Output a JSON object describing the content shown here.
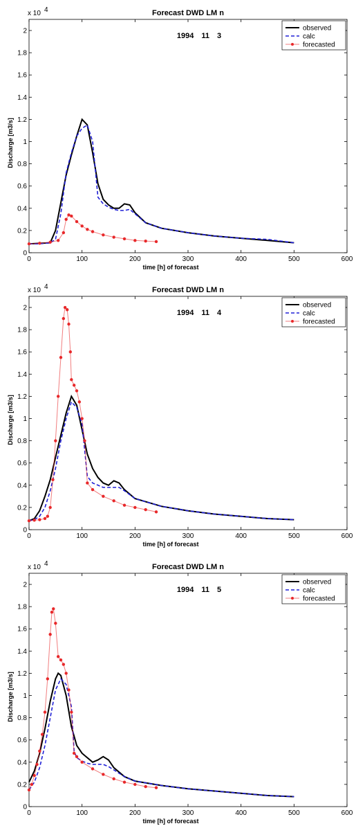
{
  "colors": {
    "observed": "#000000",
    "calc": "#1f1fd6",
    "forecasted": "#e8282a"
  },
  "chart_data": [
    {
      "type": "line",
      "title": "Forecast DWD LM n",
      "date_label": "1994 11 3",
      "xlabel": "time [h] of forecast",
      "ylabel": "Discharge [m3/s]",
      "y_multiplier": "x 10",
      "y_exponent": "4",
      "xlim": [
        0,
        600
      ],
      "ylim": [
        0,
        2.1
      ],
      "xticks": [
        0,
        100,
        200,
        300,
        400,
        500,
        600
      ],
      "xtick_labels": [
        "0",
        "100",
        "200",
        "300",
        "400",
        "500",
        "600"
      ],
      "yticks": [
        0,
        0.2,
        0.4,
        0.6,
        0.8,
        1,
        1.2,
        1.4,
        1.6,
        1.8,
        2
      ],
      "ytick_labels": [
        "0",
        "0.2",
        "0.4",
        "0.6",
        "0.8",
        "1",
        "1.2",
        "1.4",
        "1.6",
        "1.8",
        "2"
      ],
      "legend": {
        "placement": "top-right",
        "entries": [
          "observed",
          "calc",
          "forecasted"
        ]
      },
      "series": [
        {
          "name": "observed",
          "style": "solid",
          "x": [
            0,
            20,
            40,
            50,
            60,
            70,
            80,
            90,
            100,
            110,
            120,
            130,
            140,
            150,
            160,
            170,
            180,
            190,
            200,
            220,
            250,
            300,
            350,
            400,
            450,
            500
          ],
          "y": [
            0.08,
            0.085,
            0.09,
            0.2,
            0.45,
            0.7,
            0.88,
            1.05,
            1.2,
            1.15,
            0.9,
            0.62,
            0.48,
            0.43,
            0.4,
            0.4,
            0.44,
            0.43,
            0.36,
            0.27,
            0.22,
            0.18,
            0.15,
            0.13,
            0.11,
            0.09
          ]
        },
        {
          "name": "calc",
          "style": "dashed",
          "x": [
            0,
            20,
            40,
            50,
            60,
            70,
            80,
            90,
            100,
            110,
            120,
            130,
            140,
            150,
            160,
            170,
            180,
            190,
            200,
            220,
            250,
            300,
            350,
            400,
            450,
            500
          ],
          "y": [
            0.08,
            0.08,
            0.09,
            0.12,
            0.35,
            0.72,
            0.9,
            1.05,
            1.12,
            1.15,
            1.0,
            0.5,
            0.44,
            0.41,
            0.39,
            0.38,
            0.38,
            0.39,
            0.35,
            0.27,
            0.22,
            0.18,
            0.15,
            0.13,
            0.12,
            0.09
          ]
        },
        {
          "name": "forecasted",
          "style": "marker",
          "x": [
            0,
            20,
            40,
            55,
            65,
            70,
            75,
            80,
            90,
            100,
            110,
            120,
            140,
            160,
            180,
            200,
            220,
            240
          ],
          "y": [
            0.08,
            0.085,
            0.095,
            0.11,
            0.18,
            0.3,
            0.34,
            0.33,
            0.28,
            0.24,
            0.21,
            0.19,
            0.16,
            0.14,
            0.125,
            0.11,
            0.105,
            0.1
          ]
        }
      ]
    },
    {
      "type": "line",
      "title": "Forecast DWD LM n",
      "date_label": "1994 11 4",
      "xlabel": "time [h] of forecast",
      "ylabel": "Discharge [m3/s]",
      "y_multiplier": "x 10",
      "y_exponent": "4",
      "xlim": [
        0,
        600
      ],
      "ylim": [
        0,
        2.1
      ],
      "xticks": [
        0,
        100,
        200,
        300,
        400,
        500,
        600
      ],
      "xtick_labels": [
        "0",
        "100",
        "200",
        "300",
        "400",
        "500",
        "600"
      ],
      "yticks": [
        0,
        0.2,
        0.4,
        0.6,
        0.8,
        1,
        1.2,
        1.4,
        1.6,
        1.8,
        2
      ],
      "ytick_labels": [
        "0",
        "0.2",
        "0.4",
        "0.6",
        "0.8",
        "1",
        "1.2",
        "1.4",
        "1.6",
        "1.8",
        "2"
      ],
      "legend": {
        "placement": "top-right",
        "entries": [
          "observed",
          "calc",
          "forecasted"
        ]
      },
      "series": [
        {
          "name": "observed",
          "style": "solid",
          "x": [
            0,
            10,
            20,
            30,
            40,
            50,
            60,
            70,
            80,
            90,
            100,
            110,
            120,
            130,
            140,
            150,
            160,
            170,
            180,
            200,
            250,
            300,
            350,
            400,
            450,
            500
          ],
          "y": [
            0.08,
            0.1,
            0.17,
            0.3,
            0.45,
            0.65,
            0.85,
            1.05,
            1.2,
            1.12,
            0.9,
            0.68,
            0.55,
            0.47,
            0.42,
            0.4,
            0.44,
            0.42,
            0.36,
            0.28,
            0.21,
            0.17,
            0.14,
            0.12,
            0.1,
            0.09
          ]
        },
        {
          "name": "calc",
          "style": "dashed",
          "x": [
            0,
            10,
            20,
            30,
            40,
            50,
            60,
            70,
            80,
            90,
            100,
            110,
            120,
            130,
            140,
            150,
            160,
            170,
            180,
            200,
            250,
            300,
            350,
            400,
            450,
            500
          ],
          "y": [
            0.08,
            0.09,
            0.12,
            0.2,
            0.35,
            0.55,
            0.8,
            1.0,
            1.15,
            1.1,
            0.95,
            0.48,
            0.42,
            0.4,
            0.38,
            0.38,
            0.38,
            0.38,
            0.35,
            0.28,
            0.21,
            0.17,
            0.14,
            0.12,
            0.1,
            0.09
          ]
        },
        {
          "name": "forecasted",
          "style": "marker",
          "x": [
            0,
            10,
            20,
            30,
            35,
            40,
            45,
            50,
            55,
            60,
            65,
            68,
            72,
            75,
            78,
            80,
            85,
            90,
            95,
            100,
            105,
            110,
            120,
            140,
            160,
            180,
            200,
            220,
            240
          ],
          "y": [
            0.08,
            0.085,
            0.09,
            0.1,
            0.12,
            0.2,
            0.45,
            0.8,
            1.2,
            1.55,
            1.9,
            2.0,
            1.98,
            1.85,
            1.6,
            1.35,
            1.3,
            1.25,
            1.15,
            1.0,
            0.8,
            0.42,
            0.36,
            0.3,
            0.26,
            0.22,
            0.2,
            0.18,
            0.16
          ]
        }
      ]
    },
    {
      "type": "line",
      "title": "Forecast DWD LM n",
      "date_label": "1994 11 5",
      "xlabel": "time [h] of forecast",
      "ylabel": "Discharge [m3/s]",
      "y_multiplier": "x 10",
      "y_exponent": "4",
      "xlim": [
        0,
        600
      ],
      "ylim": [
        0,
        2.1
      ],
      "xticks": [
        0,
        100,
        200,
        300,
        400,
        500,
        600
      ],
      "xtick_labels": [
        "0",
        "100",
        "200",
        "300",
        "400",
        "500",
        "600"
      ],
      "yticks": [
        0,
        0.2,
        0.4,
        0.6,
        0.8,
        1,
        1.2,
        1.4,
        1.6,
        1.8,
        2
      ],
      "ytick_labels": [
        "0",
        "0.2",
        "0.4",
        "0.6",
        "0.8",
        "1",
        "1.2",
        "1.4",
        "1.6",
        "1.8",
        "2"
      ],
      "legend": {
        "placement": "top-right",
        "entries": [
          "observed",
          "calc",
          "forecasted"
        ]
      },
      "series": [
        {
          "name": "observed",
          "style": "solid",
          "x": [
            0,
            10,
            20,
            30,
            40,
            50,
            55,
            60,
            70,
            80,
            90,
            100,
            110,
            120,
            130,
            140,
            150,
            160,
            180,
            200,
            250,
            300,
            350,
            400,
            450,
            500
          ],
          "y": [
            0.22,
            0.32,
            0.48,
            0.7,
            0.95,
            1.15,
            1.2,
            1.18,
            1.0,
            0.72,
            0.55,
            0.48,
            0.44,
            0.4,
            0.42,
            0.45,
            0.42,
            0.35,
            0.27,
            0.23,
            0.19,
            0.16,
            0.14,
            0.12,
            0.1,
            0.09
          ]
        },
        {
          "name": "calc",
          "style": "dashed",
          "x": [
            0,
            10,
            20,
            30,
            40,
            50,
            60,
            70,
            80,
            85,
            90,
            100,
            110,
            120,
            130,
            140,
            150,
            160,
            180,
            200,
            250,
            300,
            350,
            400,
            450,
            500
          ],
          "y": [
            0.15,
            0.22,
            0.35,
            0.55,
            0.8,
            1.05,
            1.15,
            1.1,
            0.9,
            0.5,
            0.44,
            0.41,
            0.39,
            0.38,
            0.38,
            0.38,
            0.36,
            0.33,
            0.27,
            0.23,
            0.19,
            0.16,
            0.14,
            0.12,
            0.1,
            0.09
          ]
        },
        {
          "name": "forecasted",
          "style": "marker",
          "x": [
            0,
            5,
            10,
            15,
            20,
            25,
            30,
            35,
            40,
            43,
            46,
            50,
            55,
            60,
            65,
            70,
            75,
            80,
            85,
            90,
            100,
            120,
            140,
            160,
            180,
            200,
            220,
            240
          ],
          "y": [
            0.15,
            0.2,
            0.28,
            0.38,
            0.5,
            0.65,
            0.85,
            1.15,
            1.55,
            1.75,
            1.78,
            1.65,
            1.35,
            1.32,
            1.28,
            1.2,
            1.05,
            0.85,
            0.48,
            0.45,
            0.4,
            0.34,
            0.29,
            0.25,
            0.22,
            0.2,
            0.18,
            0.17
          ]
        }
      ]
    }
  ]
}
